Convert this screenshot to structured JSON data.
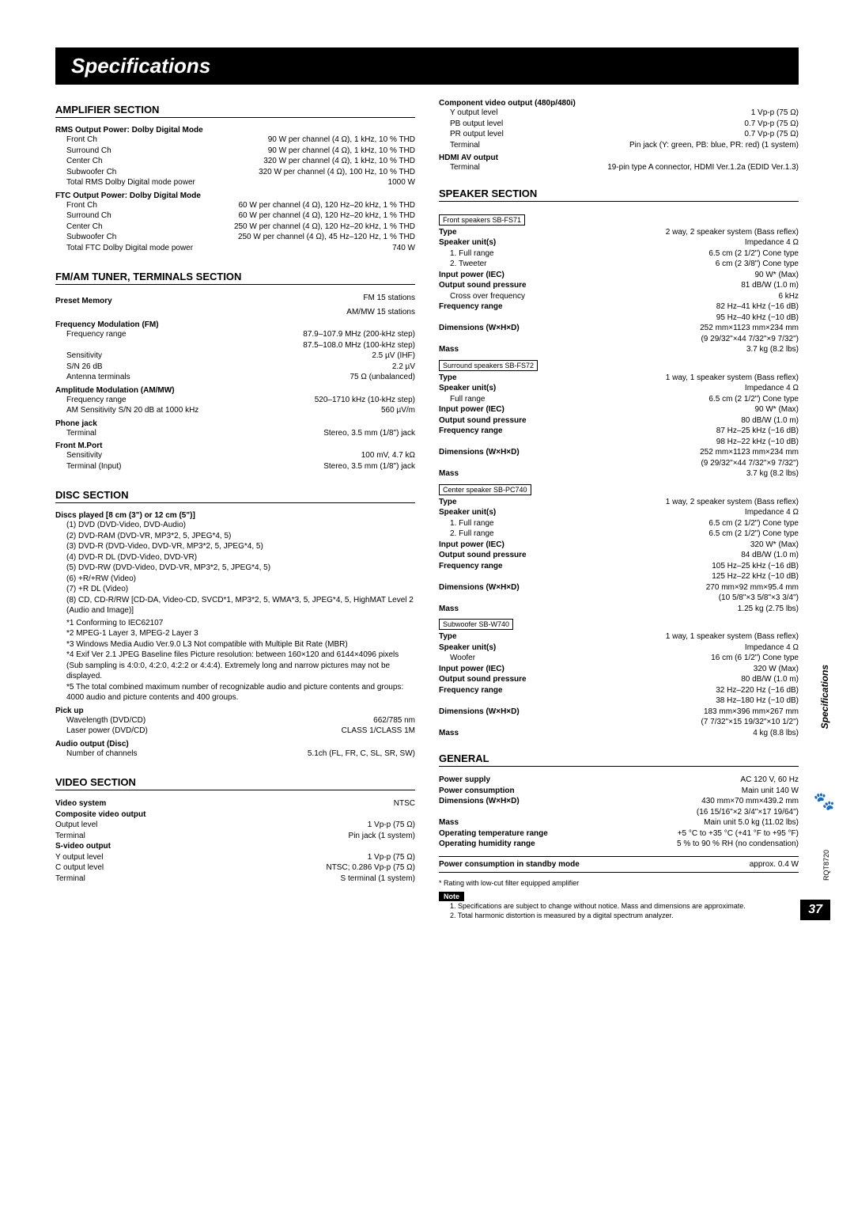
{
  "page_title": "Specifications",
  "page_number": "37",
  "doc_code": "RQT8720",
  "sidebar_label": "Specifications",
  "left": {
    "amp": {
      "heading": "AMPLIFIER SECTION",
      "rms_head": "RMS Output Power: Dolby Digital Mode",
      "rms": [
        {
          "l": "Front Ch",
          "v": "90 W per channel (4 Ω), 1 kHz, 10 % THD"
        },
        {
          "l": "Surround Ch",
          "v": "90 W per channel (4 Ω), 1 kHz, 10 % THD"
        },
        {
          "l": "Center Ch",
          "v": "320 W per channel (4 Ω), 1 kHz, 10 % THD"
        },
        {
          "l": "Subwoofer Ch",
          "v": "320 W per channel (4 Ω), 100 Hz, 10 % THD"
        },
        {
          "l": "Total RMS Dolby Digital mode power",
          "v": "1000 W"
        }
      ],
      "ftc_head": "FTC Output Power: Dolby Digital Mode",
      "ftc": [
        {
          "l": "Front Ch",
          "v": "60 W per channel (4 Ω), 120 Hz–20 kHz, 1 % THD"
        },
        {
          "l": "Surround Ch",
          "v": "60 W per channel (4 Ω), 120 Hz–20 kHz, 1 % THD"
        },
        {
          "l": "Center Ch",
          "v": "250 W per channel (4 Ω), 120 Hz–20 kHz, 1 % THD"
        },
        {
          "l": "Subwoofer Ch",
          "v": "250 W per channel (4 Ω), 45 Hz–120 Hz, 1 % THD"
        },
        {
          "l": "Total FTC Dolby Digital mode power",
          "v": "740 W"
        }
      ]
    },
    "tuner": {
      "heading": "FM/AM TUNER, TERMINALS SECTION",
      "preset_head": "Preset Memory",
      "preset": [
        {
          "l": "",
          "v": "FM 15 stations"
        },
        {
          "l": "",
          "v": "AM/MW 15 stations"
        }
      ],
      "fm_head": "Frequency Modulation (FM)",
      "fm": [
        {
          "l": "Frequency range",
          "v": "87.9–107.9 MHz (200-kHz step)"
        },
        {
          "l": "",
          "v": "87.5–108.0 MHz (100-kHz step)"
        },
        {
          "l": "Sensitivity",
          "v": "2.5 µV (IHF)"
        },
        {
          "l": "S/N 26 dB",
          "v": "2.2 µV"
        },
        {
          "l": "Antenna terminals",
          "v": "75 Ω (unbalanced)"
        }
      ],
      "am_head": "Amplitude Modulation (AM/MW)",
      "am": [
        {
          "l": "Frequency range",
          "v": "520–1710 kHz (10-kHz step)"
        },
        {
          "l": "AM Sensitivity S/N 20 dB at 1000 kHz",
          "v": "560 µV/m"
        }
      ],
      "phone_head": "Phone jack",
      "phone": [
        {
          "l": "Terminal",
          "v": "Stereo, 3.5 mm (1/8\") jack"
        }
      ],
      "mport_head": "Front M.Port",
      "mport": [
        {
          "l": "Sensitivity",
          "v": "100 mV, 4.7 kΩ"
        },
        {
          "l": "Terminal (Input)",
          "v": "Stereo, 3.5 mm (1/8\") jack"
        }
      ]
    },
    "disc": {
      "heading": "DISC SECTION",
      "played_head": "Discs played [8 cm (3\") or 12 cm (5\")]",
      "played": [
        "(1) DVD (DVD-Video, DVD-Audio)",
        "(2) DVD-RAM (DVD-VR, MP3*2, 5, JPEG*4, 5)",
        "(3) DVD-R (DVD-Video, DVD-VR, MP3*2, 5, JPEG*4, 5)",
        "(4) DVD-R DL (DVD-Video, DVD-VR)",
        "(5) DVD-RW (DVD-Video, DVD-VR, MP3*2, 5, JPEG*4, 5)",
        "(6) +R/+RW (Video)",
        "(7) +R DL (Video)",
        "(8) CD, CD-R/RW [CD-DA, Video-CD, SVCD*1, MP3*2, 5, WMA*3, 5, JPEG*4, 5, HighMAT Level 2 (Audio and Image)]"
      ],
      "footnotes": [
        "*1 Conforming to IEC62107",
        "*2 MPEG-1 Layer 3, MPEG-2 Layer 3",
        "*3 Windows Media Audio Ver.9.0 L3  Not compatible with Multiple Bit Rate (MBR)",
        "*4 Exif Ver 2.1 JPEG Baseline files  Picture resolution: between 160×120 and 6144×4096 pixels (Sub sampling is 4:0:0, 4:2:0, 4:2:2 or 4:4:4). Extremely long and narrow pictures may not be displayed.",
        "*5 The total combined maximum number of recognizable audio and picture contents and groups: 4000 audio and picture contents and 400 groups."
      ],
      "pickup_head": "Pick up",
      "pickup": [
        {
          "l": "Wavelength (DVD/CD)",
          "v": "662/785 nm"
        },
        {
          "l": "Laser power (DVD/CD)",
          "v": "CLASS 1/CLASS 1M"
        }
      ],
      "audio_head": "Audio output (Disc)",
      "audio": [
        {
          "l": "Number of channels",
          "v": "5.1ch (FL, FR, C, SL, SR, SW)"
        }
      ]
    },
    "video": {
      "heading": "VIDEO SECTION",
      "rows": [
        {
          "l": "Video system",
          "v": "NTSC",
          "b": true
        },
        {
          "l": "Composite video output",
          "v": "",
          "b": true
        },
        {
          "l": "Output level",
          "v": "1 Vp-p (75 Ω)"
        },
        {
          "l": "Terminal",
          "v": "Pin jack (1 system)"
        },
        {
          "l": "S-video output",
          "v": "",
          "b": true
        },
        {
          "l": "Y output level",
          "v": "1 Vp-p (75 Ω)"
        },
        {
          "l": "C output level",
          "v": "NTSC; 0.286 Vp-p (75 Ω)"
        },
        {
          "l": "Terminal",
          "v": "S terminal (1 system)"
        }
      ]
    }
  },
  "right": {
    "video_cont": {
      "comp_head": "Component video output (480p/480i)",
      "comp": [
        {
          "l": "Y output level",
          "v": "1 Vp-p (75 Ω)"
        },
        {
          "l": "PB output level",
          "v": "0.7 Vp-p (75 Ω)"
        },
        {
          "l": "PR output level",
          "v": "0.7 Vp-p (75 Ω)"
        },
        {
          "l": "Terminal",
          "v": "Pin jack (Y: green, PB: blue, PR: red) (1 system)"
        }
      ],
      "hdmi_head": "HDMI AV output",
      "hdmi": [
        {
          "l": "Terminal",
          "v": "19-pin type A connector, HDMI Ver.1.2a (EDID Ver.1.3)"
        }
      ]
    },
    "speaker": {
      "heading": "SPEAKER SECTION",
      "groups": [
        {
          "box": "Front speakers SB-FS71",
          "rows": [
            {
              "l": "Type",
              "v": "2 way, 2 speaker system (Bass reflex)",
              "b": true
            },
            {
              "l": "Speaker unit(s)",
              "v": "Impedance 4 Ω",
              "b": true
            },
            {
              "l": "1. Full range",
              "v": "6.5 cm (2 1/2\") Cone type",
              "i": true
            },
            {
              "l": "2. Tweeter",
              "v": "6 cm (2 3/8\") Cone type",
              "i": true
            },
            {
              "l": "Input power (IEC)",
              "v": "90 W* (Max)",
              "b": true
            },
            {
              "l": "Output sound pressure",
              "v": "81 dB/W (1.0 m)",
              "b": true
            },
            {
              "l": "Cross over frequency",
              "v": "6 kHz",
              "i": true
            },
            {
              "l": "Frequency range",
              "v": "82 Hz–41 kHz (−16 dB)",
              "b": true
            },
            {
              "l": "",
              "v": "95 Hz–40 kHz (−10 dB)"
            },
            {
              "l": "Dimensions (W×H×D)",
              "v": "252 mm×1123 mm×234 mm",
              "b": true
            },
            {
              "l": "",
              "v": "(9 29/32\"×44 7/32\"×9 7/32\")"
            },
            {
              "l": "Mass",
              "v": "3.7 kg (8.2 lbs)",
              "b": true
            }
          ]
        },
        {
          "box": "Surround speakers SB-FS72",
          "rows": [
            {
              "l": "Type",
              "v": "1 way, 1 speaker system (Bass reflex)",
              "b": true
            },
            {
              "l": "Speaker unit(s)",
              "v": "Impedance 4 Ω",
              "b": true
            },
            {
              "l": "Full range",
              "v": "6.5 cm (2 1/2\") Cone type",
              "i": true
            },
            {
              "l": "Input power (IEC)",
              "v": "90 W* (Max)",
              "b": true
            },
            {
              "l": "Output sound pressure",
              "v": "80 dB/W (1.0 m)",
              "b": true
            },
            {
              "l": "Frequency range",
              "v": "87 Hz–25 kHz (−16 dB)",
              "b": true
            },
            {
              "l": "",
              "v": "98 Hz–22 kHz (−10 dB)"
            },
            {
              "l": "Dimensions (W×H×D)",
              "v": "252 mm×1123 mm×234 mm",
              "b": true
            },
            {
              "l": "",
              "v": "(9 29/32\"×44 7/32\"×9 7/32\")"
            },
            {
              "l": "Mass",
              "v": "3.7 kg (8.2 lbs)",
              "b": true
            }
          ]
        },
        {
          "box": "Center speaker SB-PC740",
          "rows": [
            {
              "l": "Type",
              "v": "1 way, 2 speaker system (Bass reflex)",
              "b": true
            },
            {
              "l": "Speaker unit(s)",
              "v": "Impedance 4 Ω",
              "b": true
            },
            {
              "l": "1. Full range",
              "v": "6.5 cm (2 1/2\") Cone type",
              "i": true
            },
            {
              "l": "2. Full range",
              "v": "6.5 cm (2 1/2\") Cone type",
              "i": true
            },
            {
              "l": "Input power (IEC)",
              "v": "320 W* (Max)",
              "b": true
            },
            {
              "l": "Output sound pressure",
              "v": "84 dB/W (1.0 m)",
              "b": true
            },
            {
              "l": "Frequency range",
              "v": "105 Hz–25 kHz (−16 dB)",
              "b": true
            },
            {
              "l": "",
              "v": "125 Hz–22 kHz (−10 dB)"
            },
            {
              "l": "Dimensions (W×H×D)",
              "v": "270 mm×92 mm×95.4 mm",
              "b": true
            },
            {
              "l": "",
              "v": "(10 5/8\"×3 5/8\"×3 3/4\")"
            },
            {
              "l": "Mass",
              "v": "1.25 kg (2.75 lbs)",
              "b": true
            }
          ]
        },
        {
          "box": "Subwoofer SB-W740",
          "rows": [
            {
              "l": "Type",
              "v": "1 way, 1 speaker system (Bass reflex)",
              "b": true
            },
            {
              "l": "Speaker unit(s)",
              "v": "Impedance 4 Ω",
              "b": true
            },
            {
              "l": "Woofer",
              "v": "16 cm (6 1/2\") Cone type",
              "i": true
            },
            {
              "l": "Input power (IEC)",
              "v": "320 W (Max)",
              "b": true
            },
            {
              "l": "Output sound pressure",
              "v": "80 dB/W (1.0 m)",
              "b": true
            },
            {
              "l": "Frequency range",
              "v": "32 Hz–220 Hz (−16 dB)",
              "b": true
            },
            {
              "l": "",
              "v": "38 Hz–180 Hz (−10 dB)"
            },
            {
              "l": "Dimensions (W×H×D)",
              "v": "183 mm×396 mm×267 mm",
              "b": true
            },
            {
              "l": "",
              "v": "(7 7/32\"×15 19/32\"×10 1/2\")"
            },
            {
              "l": "Mass",
              "v": "4 kg (8.8 lbs)",
              "b": true
            }
          ]
        }
      ]
    },
    "general": {
      "heading": "GENERAL",
      "rows": [
        {
          "l": "Power supply",
          "v": "AC 120 V, 60 Hz",
          "b": true
        },
        {
          "l": "Power consumption",
          "v": "Main unit          140 W",
          "b": true
        },
        {
          "l": "Dimensions (W×H×D)",
          "v": "430 mm×70 mm×439.2 mm",
          "b": true
        },
        {
          "l": "",
          "v": "(16 15/16\"×2 3/4\"×17 19/64\")"
        },
        {
          "l": "Mass",
          "v": "Main unit   5.0 kg (11.02 lbs)",
          "b": true
        },
        {
          "l": "Operating temperature range",
          "v": "+5 °C to +35 °C (+41 °F to +95 °F)",
          "b": true
        },
        {
          "l": "Operating humidity range",
          "v": "5 % to 90 % RH (no condensation)",
          "b": true
        }
      ],
      "standby_l": "Power consumption in standby mode",
      "standby_v": "approx. 0.4 W",
      "rating_note": "* Rating with low-cut filter equipped amplifier",
      "note_label": "Note",
      "notes": [
        "1.  Specifications are subject to change without notice. Mass and dimensions are approximate.",
        "2.  Total harmonic distortion is measured by a digital spectrum analyzer."
      ]
    }
  }
}
